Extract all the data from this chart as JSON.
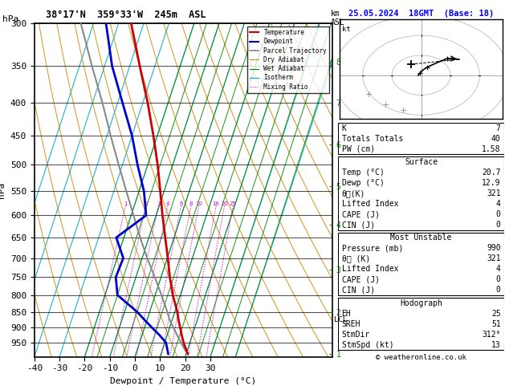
{
  "title_left": "38°17'N  359°33'W  245m  ASL",
  "title_right": "25.05.2024  18GMT  (Base: 18)",
  "xlabel": "Dewpoint / Temperature (°C)",
  "ylabel_left": "hPa",
  "P_min": 300,
  "P_max": 1000,
  "T_min": -40,
  "T_max": 35,
  "pressure_levels": [
    300,
    350,
    400,
    450,
    500,
    550,
    600,
    650,
    700,
    750,
    800,
    850,
    900,
    950
  ],
  "temp_ticks": [
    -40,
    -30,
    -20,
    -10,
    0,
    10,
    20,
    30
  ],
  "isotherm_temps": [
    -60,
    -50,
    -40,
    -30,
    -20,
    -10,
    0,
    10,
    20,
    30,
    40
  ],
  "dry_adiabat_thetas": [
    230,
    240,
    250,
    260,
    270,
    280,
    290,
    300,
    310,
    320,
    330,
    340,
    350,
    360,
    370,
    380,
    390,
    400,
    410,
    420
  ],
  "wet_adiabat_t0s": [
    -20,
    -15,
    -10,
    -5,
    0,
    5,
    10,
    15,
    20,
    25,
    30,
    35,
    40
  ],
  "mixing_ratio_values": [
    1,
    2,
    3,
    4,
    6,
    8,
    10,
    16,
    20,
    25
  ],
  "km_labels": [
    1,
    2,
    3,
    4,
    5,
    6,
    7,
    8
  ],
  "km_pressures": [
    990,
    850,
    730,
    620,
    540,
    465,
    400,
    345
  ],
  "lcl_pressure": 875,
  "temp_profile_p": [
    990,
    950,
    925,
    900,
    875,
    850,
    800,
    750,
    700,
    650,
    600,
    550,
    500,
    450,
    400,
    350,
    300
  ],
  "temp_profile_t": [
    20.7,
    17.5,
    15.8,
    14.2,
    12.5,
    11.0,
    7.0,
    3.5,
    0.2,
    -3.5,
    -7.5,
    -11.5,
    -16.0,
    -21.5,
    -28.0,
    -36.0,
    -45.0
  ],
  "dewp_profile_p": [
    990,
    950,
    925,
    900,
    875,
    850,
    800,
    750,
    700,
    650,
    600,
    550,
    500,
    450,
    400,
    350,
    300
  ],
  "dewp_profile_t": [
    12.9,
    10.5,
    7.0,
    3.0,
    -1.0,
    -5.0,
    -15.0,
    -18.0,
    -17.5,
    -23.0,
    -14.0,
    -18.0,
    -24.0,
    -30.0,
    -38.0,
    -47.0,
    -55.0
  ],
  "parcel_profile_p": [
    990,
    975,
    950,
    925,
    900,
    875,
    850,
    800,
    750,
    700,
    650,
    600,
    550,
    500,
    450,
    400,
    350,
    300
  ],
  "parcel_profile_t": [
    20.7,
    19.0,
    16.5,
    14.0,
    11.5,
    9.0,
    7.0,
    2.5,
    -2.5,
    -8.0,
    -13.5,
    -19.0,
    -25.0,
    -31.5,
    -38.5,
    -46.0,
    -55.0,
    -65.0
  ],
  "color_temp": "#cc0000",
  "color_dewp": "#0000cc",
  "color_parcel": "#888888",
  "color_dry_adiabat": "#cc8800",
  "color_wet_adiabat": "#008800",
  "color_isotherm": "#00aacc",
  "color_mixing": "#cc00cc",
  "skew_factor": 0.58,
  "info_K": 7,
  "info_TT": 40,
  "info_PW": "1.58",
  "surf_temp": "20.7",
  "surf_dewp": "12.9",
  "surf_theta_e": 321,
  "surf_li": 4,
  "surf_cape": 0,
  "surf_cin": 0,
  "mu_pressure": 990,
  "mu_theta_e": 321,
  "mu_li": 4,
  "mu_cape": 0,
  "mu_cin": 0,
  "hodo_eh": 25,
  "hodo_sreh": 51,
  "hodo_stmdir": "312°",
  "hodo_stmspd": 13,
  "copyright": "© weatheronline.co.uk"
}
